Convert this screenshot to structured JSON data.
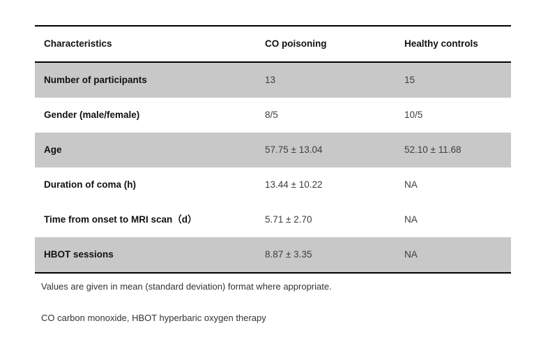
{
  "table": {
    "columns": {
      "characteristics": "Characteristics",
      "co_poisoning": "CO poisoning",
      "healthy_controls": "Healthy controls"
    },
    "rows": [
      {
        "label": "Number of participants",
        "co": "13",
        "hc": "15"
      },
      {
        "label": "Gender (male/female)",
        "co": "8/5",
        "hc": "10/5"
      },
      {
        "label": "Age",
        "co": "57.75 ± 13.04",
        "hc": "52.10 ± 11.68"
      },
      {
        "label": "Duration of coma (h)",
        "co": "13.44 ± 10.22",
        "hc": "NA"
      },
      {
        "label": "Time from onset to MRI scan（d）",
        "co": "5.71 ± 2.70",
        "hc": "NA"
      },
      {
        "label": "HBOT sessions",
        "co": "8.87 ± 3.35",
        "hc": "NA"
      }
    ]
  },
  "footnotes": [
    "Values are given in mean (standard deviation) format where appropriate.",
    "CO carbon monoxide, HBOT hyperbaric oxygen therapy"
  ],
  "colors": {
    "row_shaded": "#c8c8c8",
    "rule": "#000000",
    "label_text": "#111111",
    "value_text": "#3d3d3d"
  },
  "chart_data": {
    "type": "table",
    "title": "",
    "columns": [
      "Characteristics",
      "CO poisoning",
      "Healthy controls"
    ],
    "rows": [
      [
        "Number of participants",
        "13",
        "15"
      ],
      [
        "Gender (male/female)",
        "8/5",
        "10/5"
      ],
      [
        "Age",
        "57.75 ± 13.04",
        "52.10 ± 11.68"
      ],
      [
        "Duration of coma (h)",
        "13.44 ± 10.22",
        "NA"
      ],
      [
        "Time from onset to MRI scan（d）",
        "5.71 ± 2.70",
        "NA"
      ],
      [
        "HBOT sessions",
        "8.87 ± 3.35",
        "NA"
      ]
    ]
  }
}
